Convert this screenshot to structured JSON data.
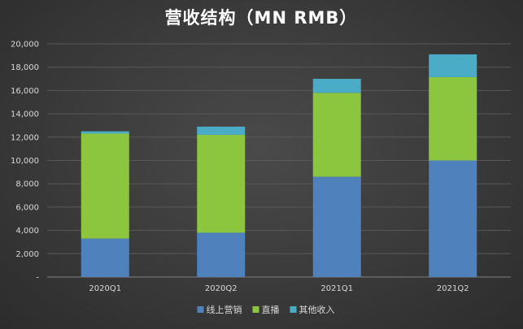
{
  "chart_data": {
    "type": "bar",
    "stacked": true,
    "title": "营收结构（MN RMB）",
    "categories": [
      "2020Q1",
      "2020Q2",
      "2021Q1",
      "2021Q2"
    ],
    "series": [
      {
        "name": "线上营销",
        "values": [
          3300,
          3800,
          8600,
          10000
        ],
        "color": "#4f81bd"
      },
      {
        "name": "直播",
        "values": [
          9000,
          8400,
          7200,
          7150
        ],
        "color": "#8cc63f"
      },
      {
        "name": "其他收入",
        "values": [
          200,
          700,
          1200,
          1950
        ],
        "color": "#4aacc6"
      }
    ],
    "ylim": [
      0,
      20000
    ],
    "yticks": [
      "-",
      "2,000",
      "4,000",
      "6,000",
      "8,000",
      "10,000",
      "12,000",
      "14,000",
      "16,000",
      "18,000",
      "20,000"
    ],
    "grid": true,
    "legend": "bottom",
    "background": "#3d3d3d",
    "text_color": "#d9d9d9"
  }
}
